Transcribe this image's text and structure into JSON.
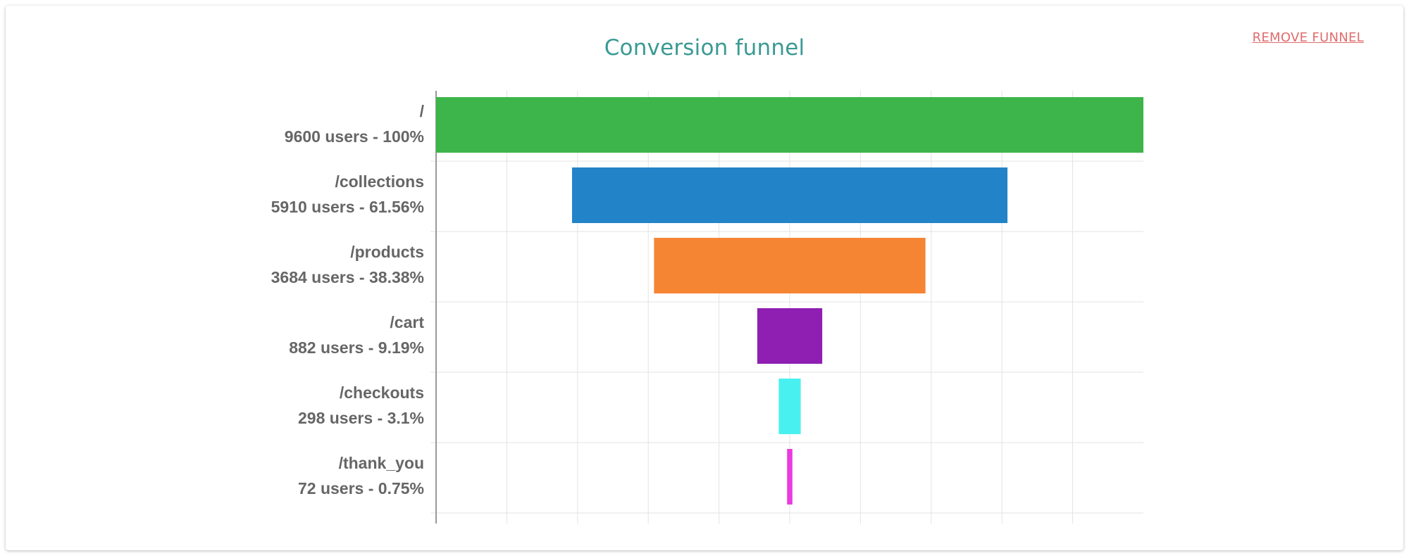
{
  "header": {
    "title": "Conversion funnel",
    "remove_label": "REMOVE FUNNEL"
  },
  "colors": {
    "title": "#3a9a93",
    "remove": "#e06c6c",
    "grid": "#e3e3e3",
    "axis": "#999999",
    "label": "#666666"
  },
  "chart_data": {
    "type": "bar",
    "orientation": "horizontal-centered-funnel",
    "title": "Conversion funnel",
    "categories": [
      "/",
      "/collections",
      "/products",
      "/cart",
      "/checkouts",
      "/thank_you"
    ],
    "values": [
      9600,
      5910,
      3684,
      882,
      298,
      72
    ],
    "stats_labels": [
      "9600 users - 100%",
      "5910 users - 61.56%",
      "3684 users - 38.38%",
      "882 users - 9.19%",
      "298 users - 3.1%",
      "72 users - 0.75%"
    ],
    "bar_colors": [
      "#3db54a",
      "#2383c8",
      "#f58433",
      "#8e1fb2",
      "#48f1ef",
      "#ea3ae0"
    ],
    "xlim": [
      0,
      9600
    ],
    "grid": true,
    "legend": "none"
  }
}
